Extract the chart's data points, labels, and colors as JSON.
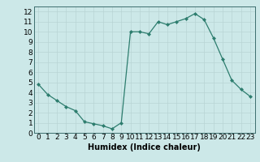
{
  "x": [
    0,
    1,
    2,
    3,
    4,
    5,
    6,
    7,
    8,
    9,
    10,
    11,
    12,
    13,
    14,
    15,
    16,
    17,
    18,
    19,
    20,
    21,
    22,
    23
  ],
  "y": [
    4.8,
    3.8,
    3.2,
    2.6,
    2.2,
    1.1,
    0.9,
    0.7,
    0.4,
    1.0,
    10.0,
    10.0,
    9.8,
    11.0,
    10.7,
    11.0,
    11.3,
    11.8,
    11.2,
    9.4,
    7.3,
    5.2,
    4.3,
    3.6
  ],
  "xlabel": "Humidex (Indice chaleur)",
  "ylim": [
    0,
    12.5
  ],
  "xlim": [
    -0.5,
    23.5
  ],
  "yticks": [
    0,
    1,
    2,
    3,
    4,
    5,
    6,
    7,
    8,
    9,
    10,
    11,
    12
  ],
  "xticks": [
    0,
    1,
    2,
    3,
    4,
    5,
    6,
    7,
    8,
    9,
    10,
    11,
    12,
    13,
    14,
    15,
    16,
    17,
    18,
    19,
    20,
    21,
    22,
    23
  ],
  "line_color": "#2d7d6e",
  "marker_color": "#2d7d6e",
  "bg_color": "#cce8e8",
  "grid_color": "#b8d4d4",
  "axis_bg": "#cce8e8",
  "xlabel_fontsize": 7,
  "tick_fontsize": 6.5,
  "ylabel_bg": "#b8d4d4"
}
